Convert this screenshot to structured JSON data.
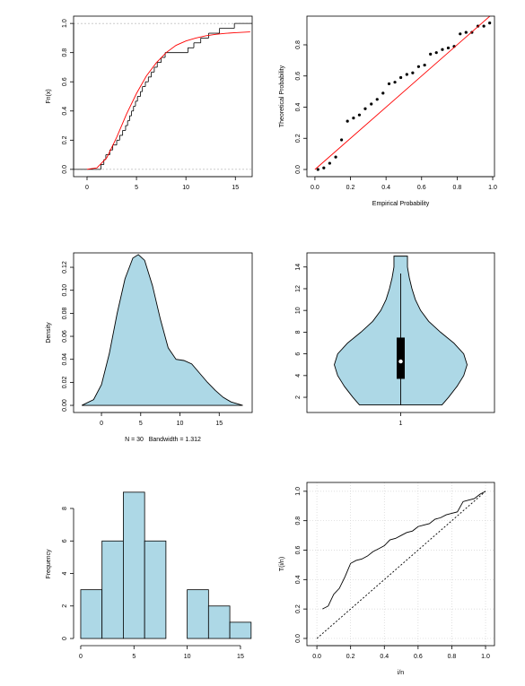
{
  "chart_data": [
    {
      "type": "line",
      "ylabel": "Fn(x)",
      "xlim": [
        -1.36,
        16.7
      ],
      "ylim": [
        -0.05,
        1.05
      ],
      "xticks": [
        0,
        5,
        10,
        15
      ],
      "yticks": [
        {
          "value": 0,
          "label": "0.0"
        },
        {
          "value": 0.2,
          "label": "0.2"
        },
        {
          "value": 0.4,
          "label": "0.4"
        },
        {
          "value": 0.6,
          "label": "0.6"
        },
        {
          "value": 0.8,
          "label": "0.8"
        },
        {
          "value": 1,
          "label": "1.0"
        }
      ],
      "hlines": [
        0,
        1
      ],
      "series": [
        {
          "kind": "step",
          "color": "#000000",
          "x": [
            1.4,
            1.7,
            1.9,
            2.3,
            2.6,
            3.0,
            3.3,
            3.6,
            3.9,
            4.1,
            4.3,
            4.5,
            4.7,
            4.9,
            5.1,
            5.4,
            5.6,
            5.9,
            6.2,
            6.5,
            6.8,
            7.1,
            7.5,
            7.9,
            10.2,
            10.8,
            11.5,
            12.3,
            13.4,
            14.9
          ],
          "values": [
            0.033,
            0.067,
            0.1,
            0.133,
            0.167,
            0.2,
            0.233,
            0.267,
            0.3,
            0.333,
            0.367,
            0.4,
            0.433,
            0.467,
            0.5,
            0.533,
            0.567,
            0.6,
            0.633,
            0.667,
            0.7,
            0.733,
            0.767,
            0.8,
            0.833,
            0.867,
            0.9,
            0.933,
            0.967,
            1
          ]
        },
        {
          "kind": "line",
          "color": "#ff0000",
          "x": [
            0,
            1,
            2,
            3,
            4,
            5,
            6,
            7,
            8,
            9,
            10,
            11,
            12,
            13,
            14,
            15,
            16.5
          ],
          "values": [
            0,
            0.01,
            0.08,
            0.22,
            0.38,
            0.52,
            0.64,
            0.73,
            0.8,
            0.85,
            0.88,
            0.9,
            0.915,
            0.925,
            0.932,
            0.937,
            0.942
          ]
        }
      ]
    },
    {
      "type": "scatter",
      "xlabel": "Empirical Probability",
      "ylabel": "Theoretical Probability",
      "xlim": [
        -0.045,
        1.01
      ],
      "ylim": [
        -0.046,
        0.984
      ],
      "xticks": [
        {
          "value": 0,
          "label": "0.0"
        },
        {
          "value": 0.2,
          "label": "0.2"
        },
        {
          "value": 0.4,
          "label": "0.4"
        },
        {
          "value": 0.6,
          "label": "0.6"
        },
        {
          "value": 0.8,
          "label": "0.8"
        },
        {
          "value": 1,
          "label": "1.0"
        }
      ],
      "yticks": [
        {
          "value": 0,
          "label": "0.0"
        },
        {
          "value": 0.2,
          "label": "0.2"
        },
        {
          "value": 0.4,
          "label": "0.4"
        },
        {
          "value": 0.6,
          "label": "0.6"
        },
        {
          "value": 0.8,
          "label": "0.8"
        }
      ],
      "series": [
        {
          "kind": "points",
          "color": "#000000",
          "x": [
            0.017,
            0.05,
            0.083,
            0.117,
            0.15,
            0.183,
            0.217,
            0.25,
            0.283,
            0.317,
            0.35,
            0.383,
            0.417,
            0.45,
            0.483,
            0.517,
            0.55,
            0.583,
            0.617,
            0.65,
            0.683,
            0.717,
            0.75,
            0.783,
            0.817,
            0.85,
            0.883,
            0.917,
            0.95,
            0.983
          ],
          "values": [
            0.0,
            0.01,
            0.04,
            0.08,
            0.19,
            0.31,
            0.33,
            0.35,
            0.39,
            0.42,
            0.45,
            0.49,
            0.55,
            0.56,
            0.59,
            0.61,
            0.62,
            0.66,
            0.67,
            0.74,
            0.75,
            0.77,
            0.78,
            0.79,
            0.87,
            0.88,
            0.88,
            0.92,
            0.92,
            0.94
          ]
        },
        {
          "kind": "line",
          "color": "#ff0000",
          "x": [
            0,
            1
          ],
          "values": [
            0,
            1
          ]
        }
      ]
    },
    {
      "type": "area",
      "xlabel": "N = 30   Bandwidth = 1.312",
      "ylabel": "Density",
      "xlim": [
        -3.55,
        19.2
      ],
      "ylim": [
        -0.0062,
        0.1325
      ],
      "xticks": [
        0,
        5,
        10,
        15
      ],
      "yticks": [
        {
          "value": 0,
          "label": "0.00"
        },
        {
          "value": 0.02,
          "label": "0.02"
        },
        {
          "value": 0.04,
          "label": "0.04"
        },
        {
          "value": 0.06,
          "label": "0.06"
        },
        {
          "value": 0.08,
          "label": "0.08"
        },
        {
          "value": 0.1,
          "label": "0.10"
        },
        {
          "value": 0.12,
          "label": "0.12"
        }
      ],
      "series": [
        {
          "kind": "area",
          "color": "#add8e6",
          "x": [
            -2.5,
            -1,
            0,
            1,
            2,
            3,
            4,
            4.7,
            5.5,
            6.5,
            7.5,
            8.5,
            9.5,
            10.5,
            11.5,
            12.5,
            13.5,
            14.5,
            15.5,
            16.5,
            18
          ],
          "values": [
            0,
            0.005,
            0.018,
            0.045,
            0.08,
            0.11,
            0.128,
            0.131,
            0.126,
            0.104,
            0.075,
            0.05,
            0.04,
            0.039,
            0.036,
            0.028,
            0.02,
            0.013,
            0.007,
            0.003,
            0
          ]
        }
      ]
    },
    {
      "type": "violin",
      "color": "#add8e6",
      "xlim": [
        0.5,
        1.5
      ],
      "ylim": [
        0.6,
        15.3
      ],
      "xticks": [
        1
      ],
      "yticks": [
        2,
        4,
        6,
        8,
        10,
        12,
        14
      ],
      "profile": {
        "y": [
          1.3,
          2,
          3,
          4,
          5,
          6,
          7,
          8,
          9,
          10,
          11,
          12,
          13,
          14,
          15
        ],
        "widths": [
          0.22,
          0.255,
          0.3,
          0.336,
          0.354,
          0.336,
          0.283,
          0.212,
          0.149,
          0.106,
          0.078,
          0.06,
          0.046,
          0.036,
          0.036
        ]
      },
      "box": {
        "whisker_low": 1.3,
        "q1": 3.7,
        "median": 5.3,
        "q3": 7.5,
        "whisker_high": 13.4
      }
    },
    {
      "type": "histogram",
      "ylabel": "Frequency",
      "color": "#add8e6",
      "xlim": [
        -0.67,
        16.1
      ],
      "ylim": [
        -0.44,
        9.6
      ],
      "xticks": [
        0,
        5,
        10,
        15
      ],
      "yticks": [
        0,
        2,
        4,
        6,
        8
      ],
      "bins": [
        0,
        2,
        4,
        6,
        8,
        10,
        12,
        14,
        16
      ],
      "values": [
        3,
        6,
        9,
        6,
        0,
        3,
        2,
        1
      ]
    },
    {
      "type": "line",
      "xlabel": "i/n",
      "ylabel": "T(i/n)",
      "grid": true,
      "xlim": [
        -0.059,
        1.053
      ],
      "ylim": [
        -0.049,
        1.06
      ],
      "xticks": [
        {
          "value": 0,
          "label": "0.0"
        },
        {
          "value": 0.2,
          "label": "0.2"
        },
        {
          "value": 0.4,
          "label": "0.4"
        },
        {
          "value": 0.6,
          "label": "0.6"
        },
        {
          "value": 0.8,
          "label": "0.8"
        },
        {
          "value": 1,
          "label": "1.0"
        }
      ],
      "yticks": [
        {
          "value": 0,
          "label": "0.0"
        },
        {
          "value": 0.2,
          "label": "0.2"
        },
        {
          "value": 0.4,
          "label": "0.4"
        },
        {
          "value": 0.6,
          "label": "0.6"
        },
        {
          "value": 0.8,
          "label": "0.8"
        },
        {
          "value": 1,
          "label": "1.0"
        }
      ],
      "series": [
        {
          "kind": "line",
          "color": "#000000",
          "x": [
            0.033,
            0.067,
            0.1,
            0.133,
            0.167,
            0.2,
            0.233,
            0.267,
            0.3,
            0.333,
            0.367,
            0.4,
            0.433,
            0.467,
            0.5,
            0.533,
            0.567,
            0.6,
            0.633,
            0.667,
            0.7,
            0.733,
            0.767,
            0.8,
            0.833,
            0.867,
            0.9,
            0.933,
            0.967,
            1
          ],
          "values": [
            0.2,
            0.22,
            0.3,
            0.34,
            0.42,
            0.51,
            0.53,
            0.54,
            0.56,
            0.59,
            0.61,
            0.63,
            0.67,
            0.68,
            0.7,
            0.72,
            0.73,
            0.76,
            0.77,
            0.78,
            0.81,
            0.82,
            0.84,
            0.85,
            0.86,
            0.93,
            0.94,
            0.95,
            0.98,
            1
          ]
        },
        {
          "kind": "line",
          "color": "#000000",
          "linestyle": "dashed",
          "x": [
            0,
            1
          ],
          "values": [
            0,
            1
          ]
        }
      ]
    }
  ]
}
